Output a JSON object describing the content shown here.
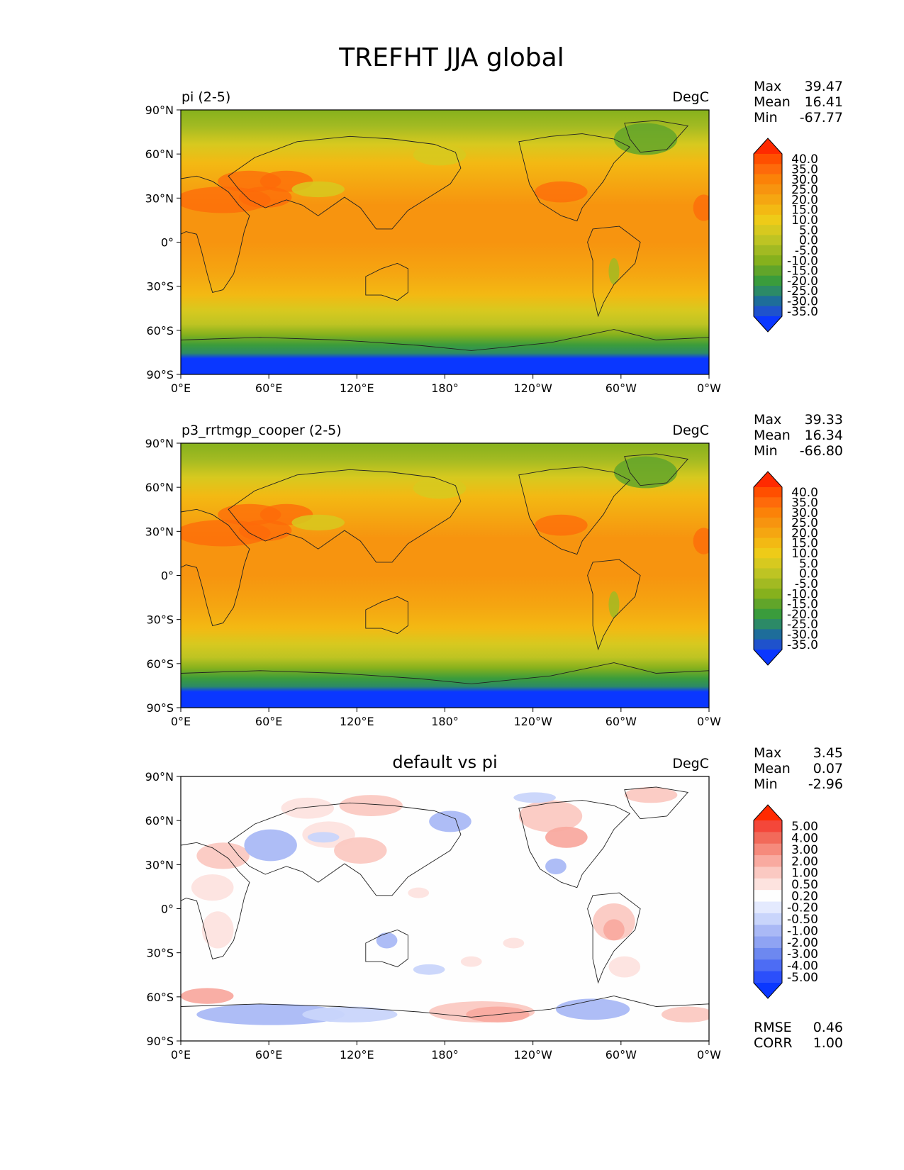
{
  "figure_title": "TREFHT JJA global",
  "lat_ticks": [
    "90°N",
    "60°N",
    "30°N",
    "0°",
    "30°S",
    "60°S",
    "90°S"
  ],
  "lon_ticks": [
    "0°E",
    "60°E",
    "120°E",
    "180°",
    "120°W",
    "60°W",
    "0°W"
  ],
  "chart_data": [
    {
      "type": "heatmap",
      "title_left": "pi (2-5)",
      "title_center": "",
      "units": "DegC",
      "stats": [
        {
          "label": "Max",
          "value": "39.47"
        },
        {
          "label": "Mean",
          "value": "16.41"
        },
        {
          "label": "Min",
          "value": "-67.77"
        }
      ],
      "colorbar_levels": [
        "40.0",
        "35.0",
        "30.0",
        "25.0",
        "20.0",
        "15.0",
        "10.0",
        "5.0",
        "0.0",
        "-5.0",
        "-10.0",
        "-15.0",
        "-20.0",
        "-25.0",
        "-30.0",
        "-35.0"
      ],
      "colorbar_colors": [
        "#ff2a00",
        "#ff4f00",
        "#fe6a0a",
        "#fb8208",
        "#f7940f",
        "#f5a611",
        "#f3b913",
        "#eecb18",
        "#d7c91f",
        "#bec423",
        "#a2ba22",
        "#86b11d",
        "#61a52a",
        "#3a9c3c",
        "#2c8a67",
        "#1e6d9a",
        "#1f52cc",
        "#0a37ff"
      ],
      "field": "abs",
      "extra_stats": []
    },
    {
      "type": "heatmap",
      "title_left": "p3_rrtmgp_cooper (2-5)",
      "title_center": "",
      "units": "DegC",
      "stats": [
        {
          "label": "Max",
          "value": "39.33"
        },
        {
          "label": "Mean",
          "value": "16.34"
        },
        {
          "label": "Min",
          "value": "-66.80"
        }
      ],
      "colorbar_levels": [
        "40.0",
        "35.0",
        "30.0",
        "25.0",
        "20.0",
        "15.0",
        "10.0",
        "5.0",
        "0.0",
        "-5.0",
        "-10.0",
        "-15.0",
        "-20.0",
        "-25.0",
        "-30.0",
        "-35.0"
      ],
      "colorbar_colors": [
        "#ff2a00",
        "#ff4f00",
        "#fe6a0a",
        "#fb8208",
        "#f7940f",
        "#f5a611",
        "#f3b913",
        "#eecb18",
        "#d7c91f",
        "#bec423",
        "#a2ba22",
        "#86b11d",
        "#61a52a",
        "#3a9c3c",
        "#2c8a67",
        "#1e6d9a",
        "#1f52cc",
        "#0a37ff"
      ],
      "field": "abs",
      "extra_stats": []
    },
    {
      "type": "heatmap",
      "title_left": "",
      "title_center": "default vs pi",
      "units": "DegC",
      "stats": [
        {
          "label": "Max",
          "value": "3.45"
        },
        {
          "label": "Mean",
          "value": "0.07"
        },
        {
          "label": "Min",
          "value": "-2.96"
        }
      ],
      "colorbar_levels": [
        "5.00",
        "4.00",
        "3.00",
        "2.00",
        "1.00",
        "0.50",
        "0.20",
        "-0.20",
        "-0.50",
        "-1.00",
        "-2.00",
        "-3.00",
        "-4.00",
        "-5.00"
      ],
      "colorbar_colors": [
        "#ff2a00",
        "#f4473a",
        "#f26a5a",
        "#f68a7c",
        "#f9aaa0",
        "#fbc9c2",
        "#fde3df",
        "#fefefe",
        "#e4eafe",
        "#c9d5fb",
        "#aab9f6",
        "#8fa3f3",
        "#6d88f0",
        "#4d6cf4",
        "#2b4ffb",
        "#0a37ff"
      ],
      "field": "diff",
      "extra_stats": [
        {
          "label": "RMSE",
          "value": "0.46"
        },
        {
          "label": "CORR",
          "value": "1.00"
        }
      ]
    }
  ]
}
